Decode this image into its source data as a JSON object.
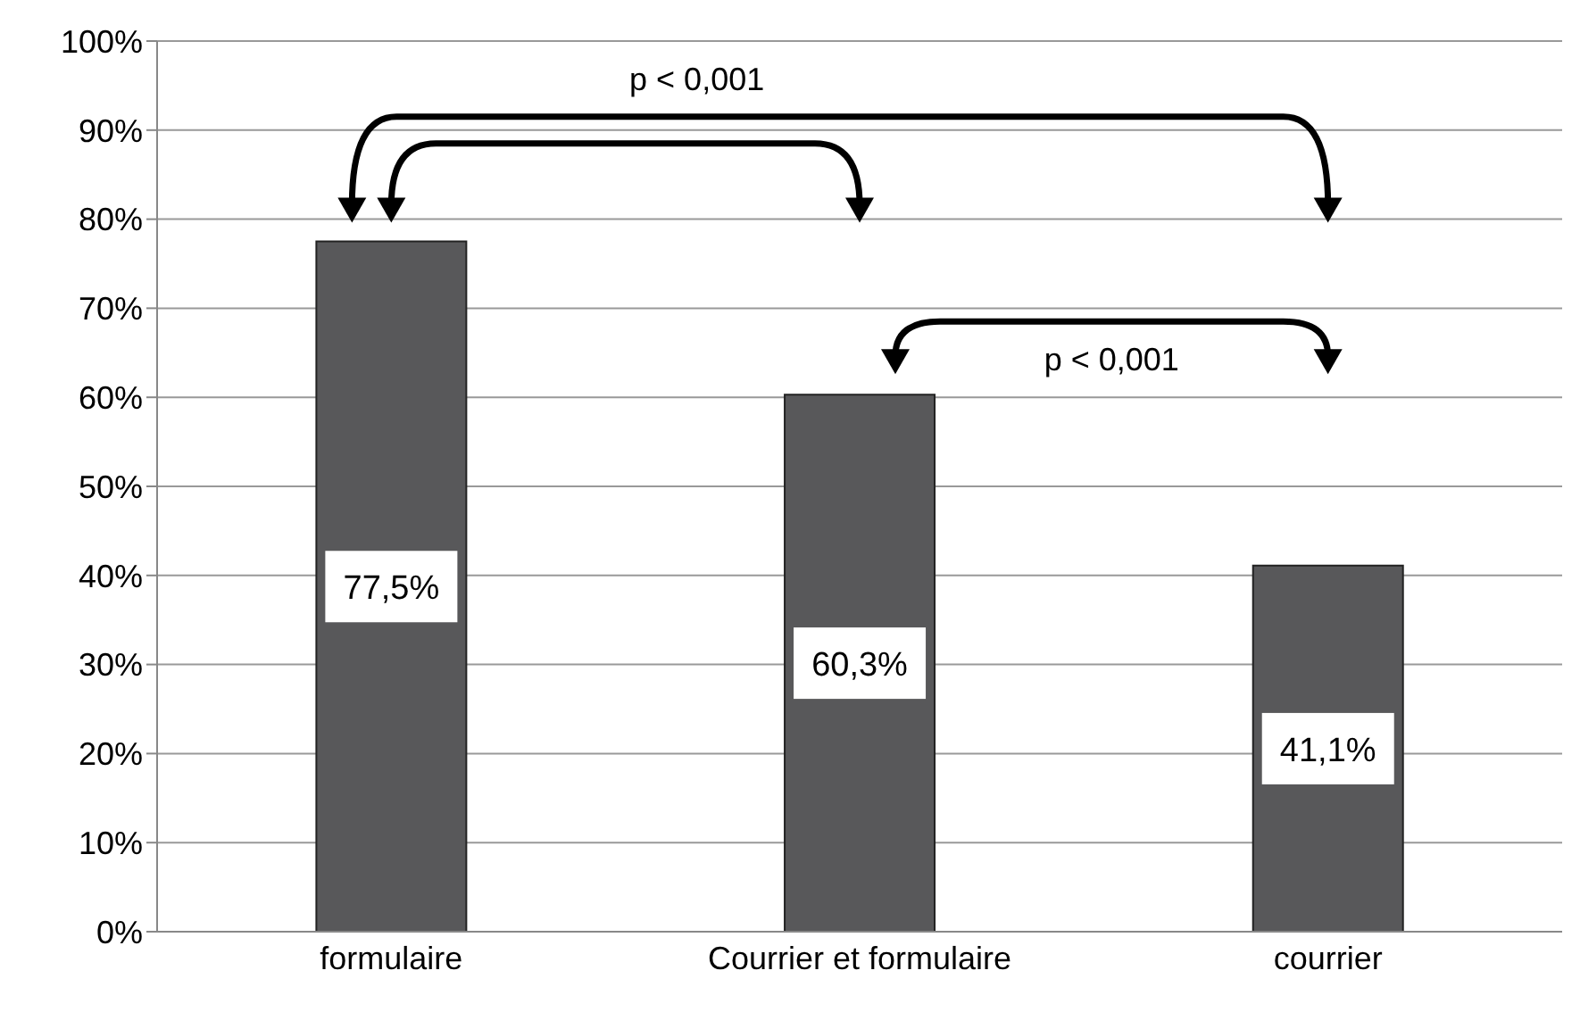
{
  "chart_data": {
    "type": "bar",
    "categories": [
      "formulaire",
      "Courrier et formulaire",
      "courrier"
    ],
    "values": [
      77.5,
      60.3,
      41.1
    ],
    "color": "#58585a",
    "value_labels": [
      "77,5%",
      "60,3%",
      "41,1%"
    ],
    "ylim": [
      0,
      100
    ],
    "yticks": [
      {
        "value": 0,
        "label": "0%"
      },
      {
        "value": 10,
        "label": "10%"
      },
      {
        "value": 20,
        "label": "20%"
      },
      {
        "value": 30,
        "label": "30%"
      },
      {
        "value": 40,
        "label": "40%"
      },
      {
        "value": 50,
        "label": "50%"
      },
      {
        "value": 60,
        "label": "60%"
      },
      {
        "value": 70,
        "label": "70%"
      },
      {
        "value": 80,
        "label": "80%"
      },
      {
        "value": 90,
        "label": "90%"
      },
      {
        "value": 100,
        "label": "100%"
      }
    ],
    "grid": "y",
    "annotations": [
      "p < 0,001",
      "p < 0,001"
    ]
  }
}
